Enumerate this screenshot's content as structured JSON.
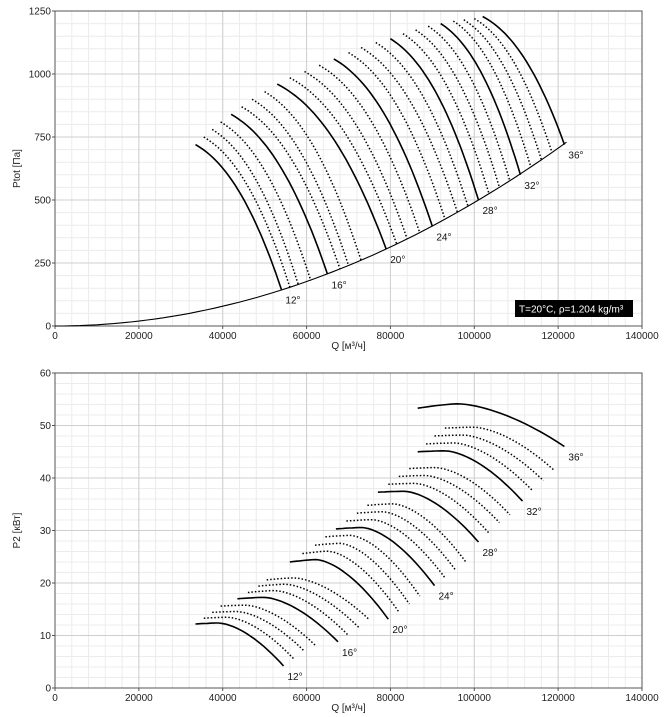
{
  "chart_data": [
    {
      "type": "line",
      "ylabel": "Ptot [Па]",
      "xlabel": "Q [м³/ч]",
      "xlim": [
        0,
        140000
      ],
      "ylim": [
        0,
        1250
      ],
      "xticks": [
        "0",
        "20000",
        "40000",
        "60000",
        "80000",
        "100000",
        "120000",
        "140000"
      ],
      "yticks": [
        "0",
        "250",
        "500",
        "750",
        "1000",
        "1250"
      ],
      "grid": true,
      "annotation": "T=20°C, ρ=1.204 kg/m³",
      "angle_labels": [
        "12°",
        "16°",
        "20°",
        "24°",
        "28°",
        "32°",
        "36°"
      ],
      "system_curve": {
        "k": 4.9e-08
      },
      "blade_curves": {
        "angles_deg": [
          12,
          13,
          14,
          15,
          16,
          17,
          18,
          19,
          20,
          21,
          22,
          23,
          24,
          25,
          26,
          27,
          28,
          29,
          30,
          31,
          32,
          33,
          34,
          35,
          36
        ],
        "solid_angles_deg": [
          12,
          16,
          20,
          24,
          28,
          32,
          36
        ],
        "start_q": [
          33500,
          35500,
          37500,
          39500,
          42000,
          44500,
          47000,
          50000,
          53000,
          56000,
          59500,
          63000,
          66500,
          70000,
          73000,
          76500,
          80000,
          83000,
          86000,
          89000,
          92000,
          95000,
          97500,
          100000,
          102000
        ],
        "start_p": [
          720,
          750,
          780,
          810,
          840,
          870,
          900,
          930,
          960,
          985,
          1010,
          1035,
          1060,
          1085,
          1105,
          1125,
          1140,
          1160,
          1175,
          1190,
          1200,
          1210,
          1215,
          1220,
          1228
        ],
        "end_q": [
          54000,
          56000,
          58000,
          61000,
          65000,
          68000,
          70000,
          73000,
          79000,
          81500,
          84000,
          87000,
          90000,
          93000,
          96000,
          98500,
          101000,
          103500,
          106000,
          108500,
          111000,
          113500,
          116000,
          118500,
          121500
        ],
        "end_p": [
          145,
          155,
          165,
          180,
          205,
          225,
          240,
          260,
          305,
          325,
          345,
          370,
          395,
          425,
          450,
          475,
          500,
          525,
          550,
          575,
          600,
          630,
          660,
          690,
          720
        ]
      }
    },
    {
      "type": "line",
      "ylabel": "P2 [кВт]",
      "xlabel": "Q [м³/ч]",
      "xlim": [
        0,
        140000
      ],
      "ylim": [
        0,
        60
      ],
      "xticks": [
        "0",
        "20000",
        "40000",
        "60000",
        "80000",
        "100000",
        "120000",
        "140000"
      ],
      "yticks": [
        "0",
        "10",
        "20",
        "30",
        "40",
        "50",
        "60"
      ],
      "grid": true,
      "angle_labels": [
        "12°",
        "16°",
        "20°",
        "24°",
        "28°",
        "32°",
        "36°"
      ],
      "power_curves": {
        "angles_deg": [
          12,
          13,
          14,
          15,
          16,
          17,
          18,
          19,
          20,
          21,
          22,
          23,
          24,
          25,
          26,
          27,
          28,
          29,
          30,
          31,
          32,
          33,
          34,
          35,
          36
        ],
        "solid_angles_deg": [
          12,
          16,
          20,
          24,
          28,
          32,
          36
        ],
        "start_q": [
          33500,
          35500,
          37500,
          39500,
          43500,
          46000,
          48500,
          50500,
          56000,
          59000,
          62000,
          64500,
          67000,
          69500,
          72000,
          74500,
          77000,
          79500,
          82000,
          84500,
          86500,
          88500,
          90500,
          93000,
          86500
        ],
        "start_p": [
          12.2,
          13.3,
          14.4,
          15.6,
          17.0,
          18.2,
          19.4,
          20.6,
          24.0,
          25.6,
          27.2,
          28.8,
          30.3,
          31.8,
          33.3,
          34.8,
          37.3,
          38.8,
          40.3,
          41.8,
          45.0,
          46.5,
          48.0,
          49.5,
          53.3
        ],
        "peak_p": [
          12.4,
          13.5,
          14.6,
          15.8,
          17.3,
          18.6,
          19.8,
          21.0,
          24.5,
          26.1,
          27.6,
          29.1,
          30.6,
          32.1,
          33.6,
          35.1,
          37.5,
          39.0,
          40.5,
          42.0,
          45.2,
          46.7,
          48.2,
          49.7,
          54.2
        ],
        "end_q": [
          54500,
          57000,
          59500,
          62000,
          67500,
          70000,
          72500,
          75000,
          79500,
          82000,
          84500,
          87000,
          90500,
          93000,
          95500,
          98000,
          101000,
          103500,
          106000,
          108500,
          111500,
          114000,
          116500,
          119000,
          121500
        ],
        "end_p": [
          4.2,
          5.5,
          7.0,
          8.2,
          8.8,
          10.0,
          11.5,
          13.0,
          13.1,
          14.5,
          16.0,
          17.5,
          19.5,
          21.0,
          22.5,
          24.0,
          27.8,
          29.5,
          31.5,
          33.0,
          35.6,
          37.5,
          39.5,
          41.5,
          46.0
        ]
      }
    }
  ]
}
